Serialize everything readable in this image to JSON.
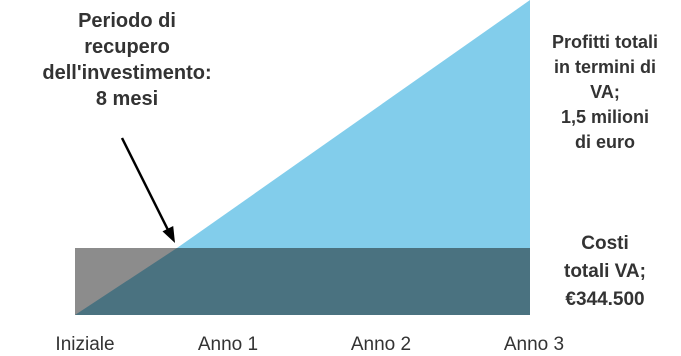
{
  "chart_data": {
    "type": "area",
    "title": "",
    "xlabel": "",
    "ylabel": "",
    "categories": [
      "Iniziale",
      "Anno 1",
      "Anno 2",
      "Anno 3"
    ],
    "payback_annotation": [
      "Periodo di",
      "recupero",
      "dell'investimento:",
      "8 mesi"
    ],
    "payback_months": 8,
    "benefits_label": [
      "Profitti totali",
      "in termini di",
      "VA;",
      "1,5 milioni",
      "di euro"
    ],
    "costs_label": [
      "Costi",
      "totali VA;",
      "€344.500"
    ],
    "total_benefits_eur": 1500000,
    "total_costs_eur": 344500,
    "colors": {
      "benefits": "#82CDEB",
      "costs": "#4A7280",
      "initial_cost": "#8C8C8C",
      "text": "#333333"
    }
  }
}
